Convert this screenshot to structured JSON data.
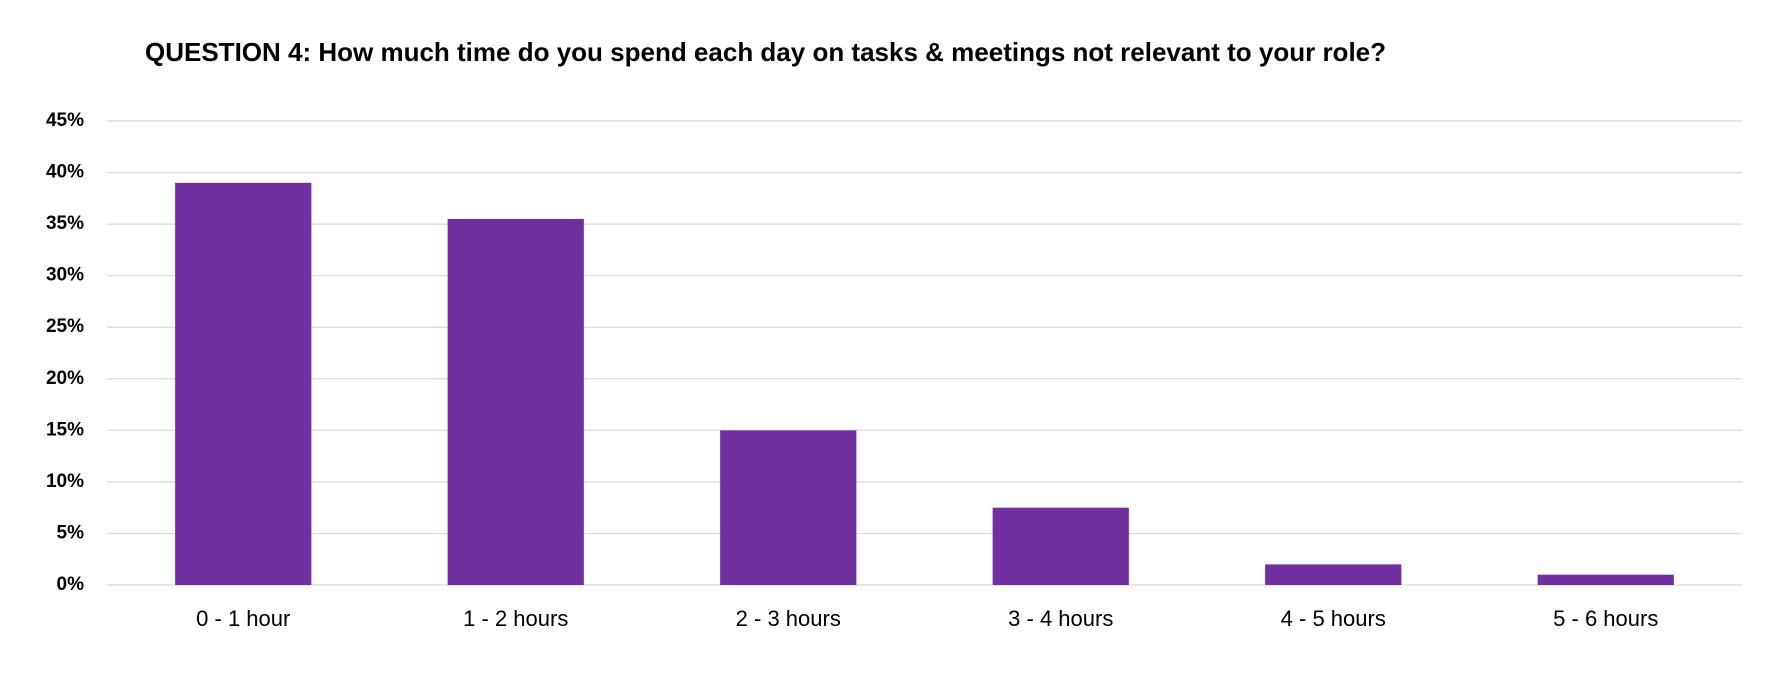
{
  "chart_data": {
    "type": "bar",
    "title": "QUESTION 4: How much time do you spend each day on tasks & meetings not relevant to your role?",
    "categories": [
      "0 - 1 hour",
      "1 - 2 hours",
      "2 - 3 hours",
      "3 - 4 hours",
      "4 - 5 hours",
      "5 - 6 hours"
    ],
    "values": [
      39,
      35.5,
      15,
      7.5,
      2,
      1
    ],
    "color": "#7030a0",
    "ylim": [
      0,
      45
    ],
    "yticks": [
      {
        "value": 0,
        "label": "0%"
      },
      {
        "value": 5,
        "label": "5%"
      },
      {
        "value": 10,
        "label": "10%"
      },
      {
        "value": 15,
        "label": "15%"
      },
      {
        "value": 20,
        "label": "20%"
      },
      {
        "value": 25,
        "label": "25%"
      },
      {
        "value": 30,
        "label": "30%"
      },
      {
        "value": 35,
        "label": "35%"
      },
      {
        "value": 40,
        "label": "40%"
      },
      {
        "value": 45,
        "label": "45%"
      }
    ],
    "grid": true
  }
}
